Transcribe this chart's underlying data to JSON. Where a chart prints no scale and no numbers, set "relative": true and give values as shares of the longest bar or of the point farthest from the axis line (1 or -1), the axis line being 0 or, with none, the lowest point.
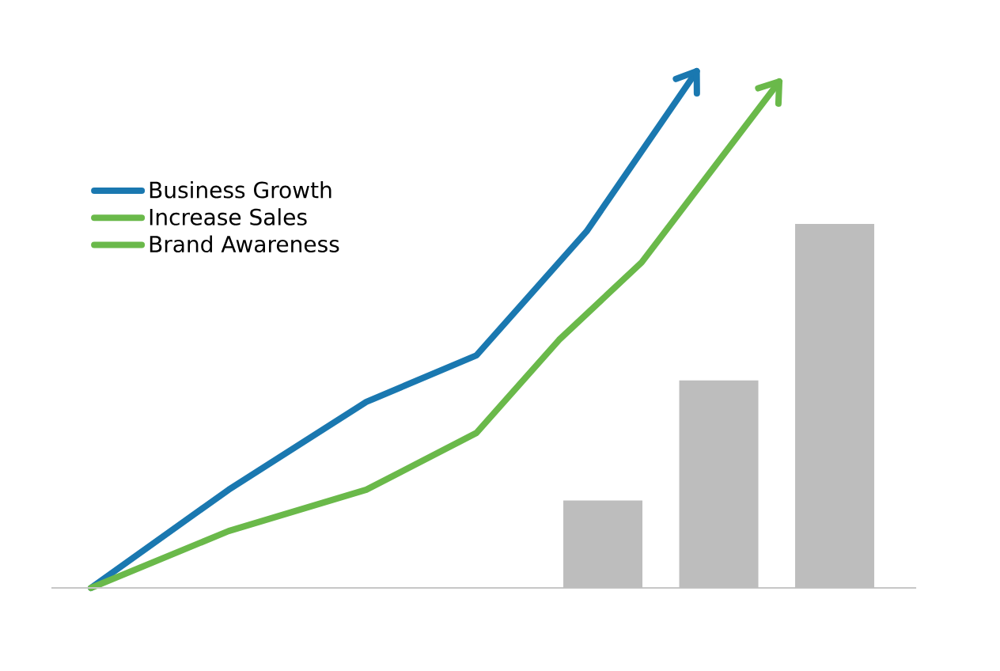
{
  "chart_data": [
    {
      "type": "line",
      "relative": true,
      "legend": "top left",
      "categories": [
        null,
        null,
        null,
        null,
        null,
        null,
        null,
        null,
        null,
        null,
        null,
        null,
        null,
        null,
        null,
        null,
        null,
        null,
        null,
        null,
        null,
        null,
        null,
        null,
        null,
        null
      ],
      "series": [
        {
          "name": "Business Growth",
          "color": "#1a78b0",
          "values": [
            0,
            null,
            null,
            null,
            null,
            0.19,
            null,
            null,
            null,
            null,
            0.36,
            null,
            null,
            null,
            0.45,
            null,
            null,
            null,
            0.69,
            null,
            null,
            null,
            1.0,
            null,
            null,
            null
          ]
        },
        {
          "name": "Increase Sales",
          "color": "#6ab94a",
          "values": [
            0,
            null,
            null,
            null,
            null,
            0.11,
            null,
            null,
            null,
            null,
            0.19,
            null,
            null,
            null,
            0.3,
            null,
            null,
            0.48,
            null,
            null,
            0.63,
            null,
            null,
            null,
            null,
            0.98
          ]
        },
        {
          "name": "Brand Awareness",
          "color": "#6ab94a",
          "values": [
            null,
            null,
            null,
            null,
            null,
            null,
            null,
            null,
            null,
            null,
            null,
            null,
            null,
            null,
            null,
            null,
            null,
            null,
            null,
            null,
            null,
            null,
            null,
            null,
            null,
            null
          ]
        }
      ]
    },
    {
      "type": "bar",
      "relative": true,
      "categories": [
        null,
        null,
        null
      ],
      "color": "#bdbdbd",
      "values": [
        0.24,
        0.57,
        1
      ]
    }
  ]
}
